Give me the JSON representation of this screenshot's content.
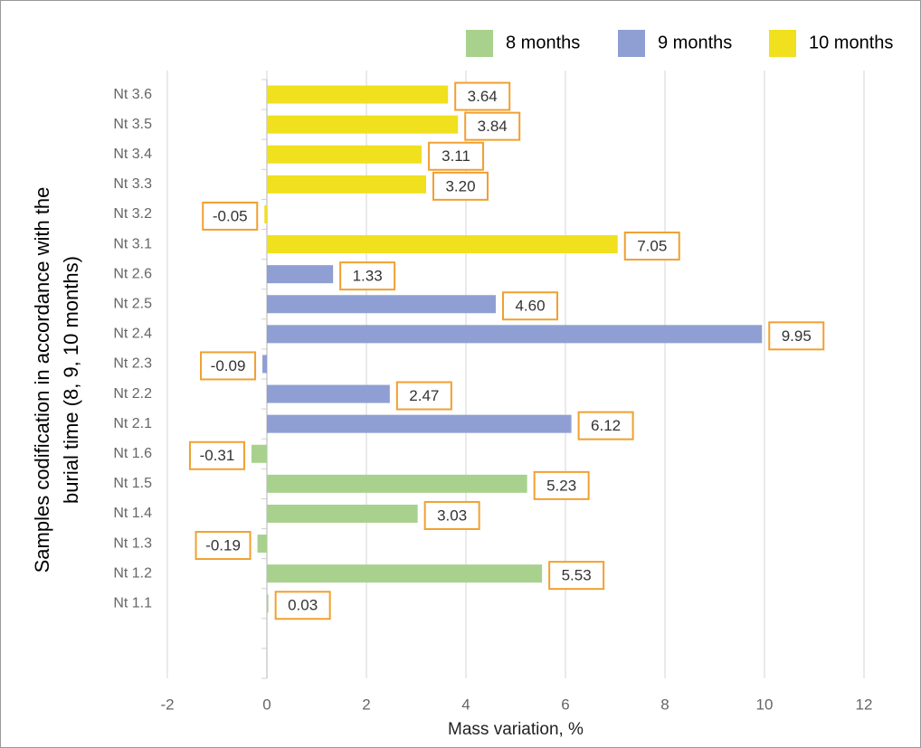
{
  "chart_data": {
    "type": "barh",
    "xlabel": "Mass variation, %",
    "ylabel": [
      "Samples codification in accordance with the",
      "burial time (8, 9, 10 months)"
    ],
    "categories": [
      "Nt 3.6",
      "Nt 3.5",
      "Nt 3.4",
      "Nt 3.3",
      "Nt 3.2",
      "Nt 3.1",
      "Nt 2.6",
      "Nt 2.5",
      "Nt 2.4",
      "Nt 2.3",
      "Nt 2.2",
      "Nt 2.1",
      "Nt 1.6",
      "Nt 1.5",
      "Nt 1.4",
      "Nt 1.3",
      "Nt 1.2",
      "Nt 1.1",
      null,
      null
    ],
    "series": [
      {
        "name": "8 months",
        "color": "#a9d18e",
        "values": [
          null,
          null,
          null,
          null,
          null,
          null,
          null,
          null,
          null,
          null,
          null,
          null,
          -0.31,
          5.23,
          3.03,
          -0.19,
          5.53,
          0.03,
          null,
          null
        ],
        "value_labels": [
          null,
          null,
          null,
          null,
          null,
          null,
          null,
          null,
          null,
          null,
          null,
          null,
          "-0.31",
          "5.23",
          "3.03",
          "-0.19",
          "5.53",
          "0.03",
          null,
          null
        ]
      },
      {
        "name": "9 months",
        "color": "#8f9fd3",
        "values": [
          null,
          null,
          null,
          null,
          null,
          null,
          1.33,
          4.6,
          9.95,
          -0.09,
          2.47,
          6.12,
          null,
          null,
          null,
          null,
          null,
          null,
          null,
          null
        ],
        "value_labels": [
          null,
          null,
          null,
          null,
          null,
          null,
          "1.33",
          "4.60",
          "9.95",
          "-0.09",
          "2.47",
          "6.12",
          null,
          null,
          null,
          null,
          null,
          null,
          null,
          null
        ]
      },
      {
        "name": "10 months",
        "color": "#f0e01e",
        "values": [
          3.64,
          3.84,
          3.11,
          3.2,
          -0.05,
          7.05,
          null,
          null,
          null,
          null,
          null,
          null,
          null,
          null,
          null,
          null,
          null,
          null,
          null,
          null
        ],
        "value_labels": [
          "3.64",
          "3.84",
          "3.11",
          "3.20",
          "-0.05",
          "7.05",
          null,
          null,
          null,
          null,
          null,
          null,
          null,
          null,
          null,
          null,
          null,
          null,
          null,
          null
        ]
      }
    ],
    "xlim": [
      -2,
      12
    ],
    "xticks": [
      -2,
      0,
      2,
      4,
      6,
      8,
      10,
      12
    ],
    "grid": true,
    "legend": "top-right",
    "label_border_color": "#f0a030"
  }
}
